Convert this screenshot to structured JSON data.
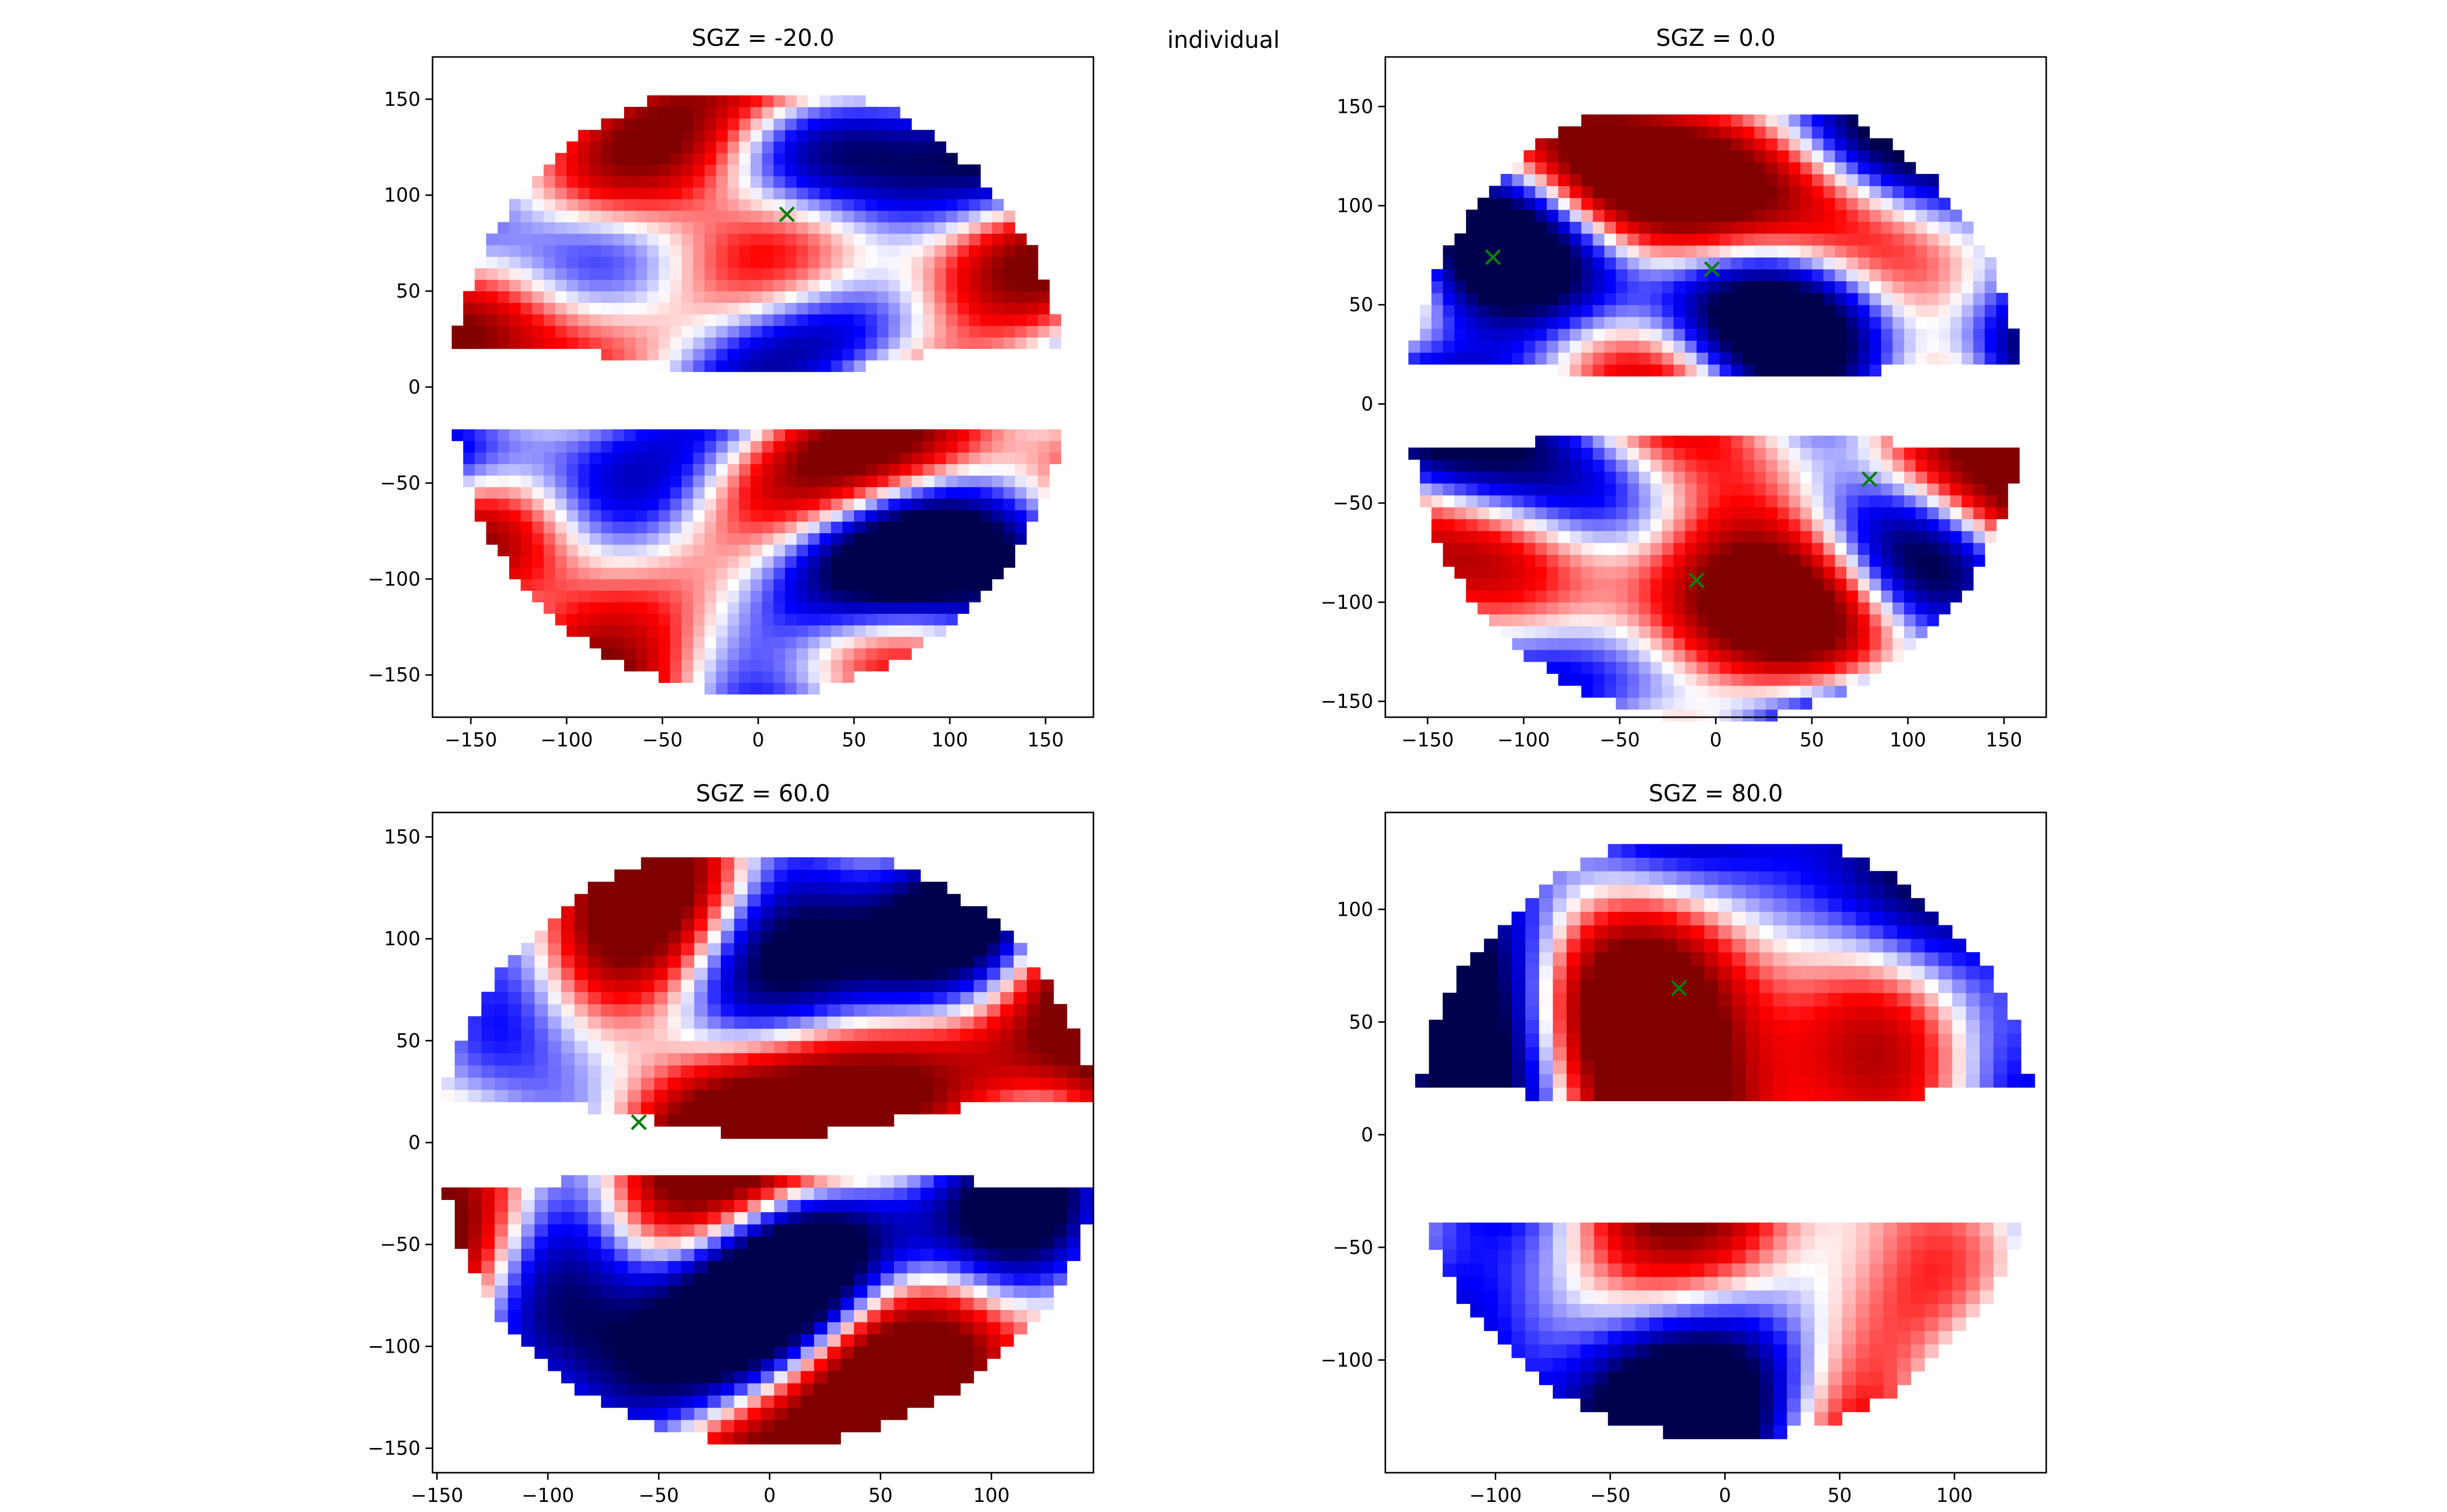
{
  "figure": {
    "suptitle": "individual"
  },
  "chart_data": [
    {
      "type": "heatmap",
      "title": "SGZ = -20.0",
      "colormap": "seismic",
      "colors": {
        "negative": "#00004c",
        "mid": "#ffffff",
        "positive": "#800000",
        "marker": "#0a7d0a"
      },
      "xlim": [
        -170,
        175
      ],
      "ylim": [
        -172,
        172
      ],
      "xticks": [
        -150,
        -100,
        -50,
        0,
        50,
        100,
        150
      ],
      "yticks": [
        -150,
        -100,
        -50,
        0,
        50,
        100,
        150
      ],
      "xtick_labels": [
        "−150",
        "−100",
        "−50",
        "0",
        "50",
        "100",
        "150"
      ],
      "ytick_labels": [
        "−150",
        "−100",
        "−50",
        "0",
        "50",
        "100",
        "150"
      ],
      "mask": {
        "radius": 160,
        "top_lobe": [
          6,
          150
        ],
        "bottom_lobe": [
          -158,
          -6
        ],
        "gap": [
          -20,
          8
        ]
      },
      "markers": [
        {
          "x": 15,
          "y": 90,
          "symbol": "x"
        }
      ],
      "seed": 11
    },
    {
      "type": "heatmap",
      "title": "SGZ = 0.0",
      "colormap": "seismic",
      "colors": {
        "negative": "#00004c",
        "mid": "#ffffff",
        "positive": "#800000",
        "marker": "#0a7d0a"
      },
      "xlim": [
        -172,
        172
      ],
      "ylim": [
        -158,
        175
      ],
      "xticks": [
        -150,
        -100,
        -50,
        0,
        50,
        100,
        150
      ],
      "yticks": [
        -150,
        -100,
        -50,
        0,
        50,
        100,
        150
      ],
      "xtick_labels": [
        "−150",
        "−100",
        "−50",
        "0",
        "50",
        "100",
        "150"
      ],
      "ytick_labels": [
        "−150",
        "−100",
        "−50",
        "0",
        "50",
        "100",
        "150"
      ],
      "mask": {
        "radius": 160,
        "top_lobe": [
          10,
          148
        ],
        "bottom_lobe": [
          -160,
          -12
        ],
        "gap": [
          -18,
          12
        ]
      },
      "markers": [
        {
          "x": -116,
          "y": 74,
          "symbol": "x"
        },
        {
          "x": -2,
          "y": 68,
          "symbol": "x"
        },
        {
          "x": 80,
          "y": -38,
          "symbol": "x"
        },
        {
          "x": -10,
          "y": -89,
          "symbol": "x"
        }
      ],
      "seed": 23
    },
    {
      "type": "heatmap",
      "title": "SGZ = 60.0",
      "colormap": "seismic",
      "colors": {
        "negative": "#00004c",
        "mid": "#ffffff",
        "positive": "#800000",
        "marker": "#0a7d0a"
      },
      "xlim": [
        -152,
        146
      ],
      "ylim": [
        -162,
        162
      ],
      "xticks": [
        -150,
        -100,
        -50,
        0,
        50,
        100
      ],
      "yticks": [
        -150,
        -100,
        -50,
        0,
        50,
        100,
        150
      ],
      "xtick_labels": [
        "−150",
        "−100",
        "−50",
        "0",
        "50",
        "100"
      ],
      "ytick_labels": [
        "−150",
        "−100",
        "−50",
        "0",
        "50",
        "100",
        "150"
      ],
      "mask": {
        "radius": 148,
        "top_lobe": [
          5,
          140
        ],
        "bottom_lobe": [
          -150,
          -18
        ],
        "gap": [
          -12,
          0
        ]
      },
      "markers": [
        {
          "x": -59,
          "y": 10,
          "symbol": "x"
        }
      ],
      "seed": 37
    },
    {
      "type": "heatmap",
      "title": "SGZ = 80.0",
      "colormap": "seismic",
      "colors": {
        "negative": "#00004c",
        "mid": "#ffffff",
        "positive": "#800000",
        "marker": "#0a7d0a"
      },
      "xlim": [
        -148,
        140
      ],
      "ylim": [
        -150,
        143
      ],
      "xticks": [
        -100,
        -50,
        0,
        50,
        100
      ],
      "yticks": [
        -100,
        -50,
        0,
        50,
        100
      ],
      "xtick_labels": [
        "−100",
        "−50",
        "0",
        "50",
        "100"
      ],
      "ytick_labels": [
        "−100",
        "−50",
        "0",
        "50",
        "100"
      ],
      "mask": {
        "radius": 135,
        "top_lobe": [
          15,
          128
        ],
        "bottom_lobe": [
          -140,
          -38
        ],
        "gap": [
          -12,
          10
        ]
      },
      "markers": [
        {
          "x": -20,
          "y": 65,
          "symbol": "x"
        }
      ],
      "seed": 53
    }
  ]
}
